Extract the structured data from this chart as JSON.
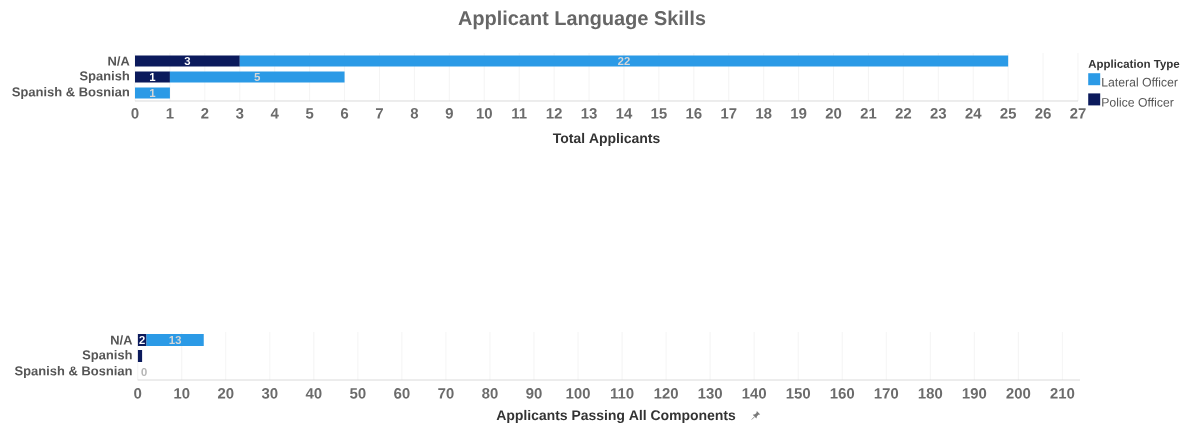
{
  "chart_data": [
    {
      "type": "bar",
      "orientation": "horizontal",
      "stacked": true,
      "title": "Applicant Language Skills",
      "xlabel": "Total Applicants",
      "legend_title": "Application Type",
      "legend": "right",
      "categories": [
        "N/A",
        "Spanish",
        "Spanish & Bosnian"
      ],
      "series": [
        {
          "name": "Police Officer",
          "color": "#0b1a5c",
          "values": [
            3,
            1,
            null
          ]
        },
        {
          "name": "Lateral Officer",
          "color": "#2b9ae6",
          "values": [
            22,
            5,
            1
          ]
        }
      ],
      "xlim": [
        0,
        27
      ],
      "xticks": [
        0,
        1,
        2,
        3,
        4,
        5,
        6,
        7,
        8,
        9,
        10,
        11,
        12,
        13,
        14,
        15,
        16,
        17,
        18,
        19,
        20,
        21,
        22,
        23,
        24,
        25,
        26,
        27
      ],
      "grid": "x",
      "data_labels": true
    },
    {
      "type": "bar",
      "orientation": "horizontal",
      "stacked": true,
      "xlabel": "Applicants Passing All Components",
      "categories": [
        "N/A",
        "Spanish",
        "Spanish & Bosnian"
      ],
      "series": [
        {
          "color": "#0b1a5c",
          "values": [
            2,
            1,
            null
          ],
          "value_labels": [
            "2",
            null,
            null
          ]
        },
        {
          "color": "#2b9ae6",
          "values": [
            13,
            null,
            0
          ],
          "value_labels": [
            "13",
            null,
            "0"
          ]
        }
      ],
      "xlim": [
        0,
        214
      ],
      "xticks": [
        0,
        10,
        20,
        30,
        40,
        50,
        60,
        70,
        80,
        90,
        100,
        110,
        120,
        130,
        140,
        150,
        160,
        170,
        180,
        190,
        200,
        210
      ],
      "grid": "x"
    }
  ]
}
